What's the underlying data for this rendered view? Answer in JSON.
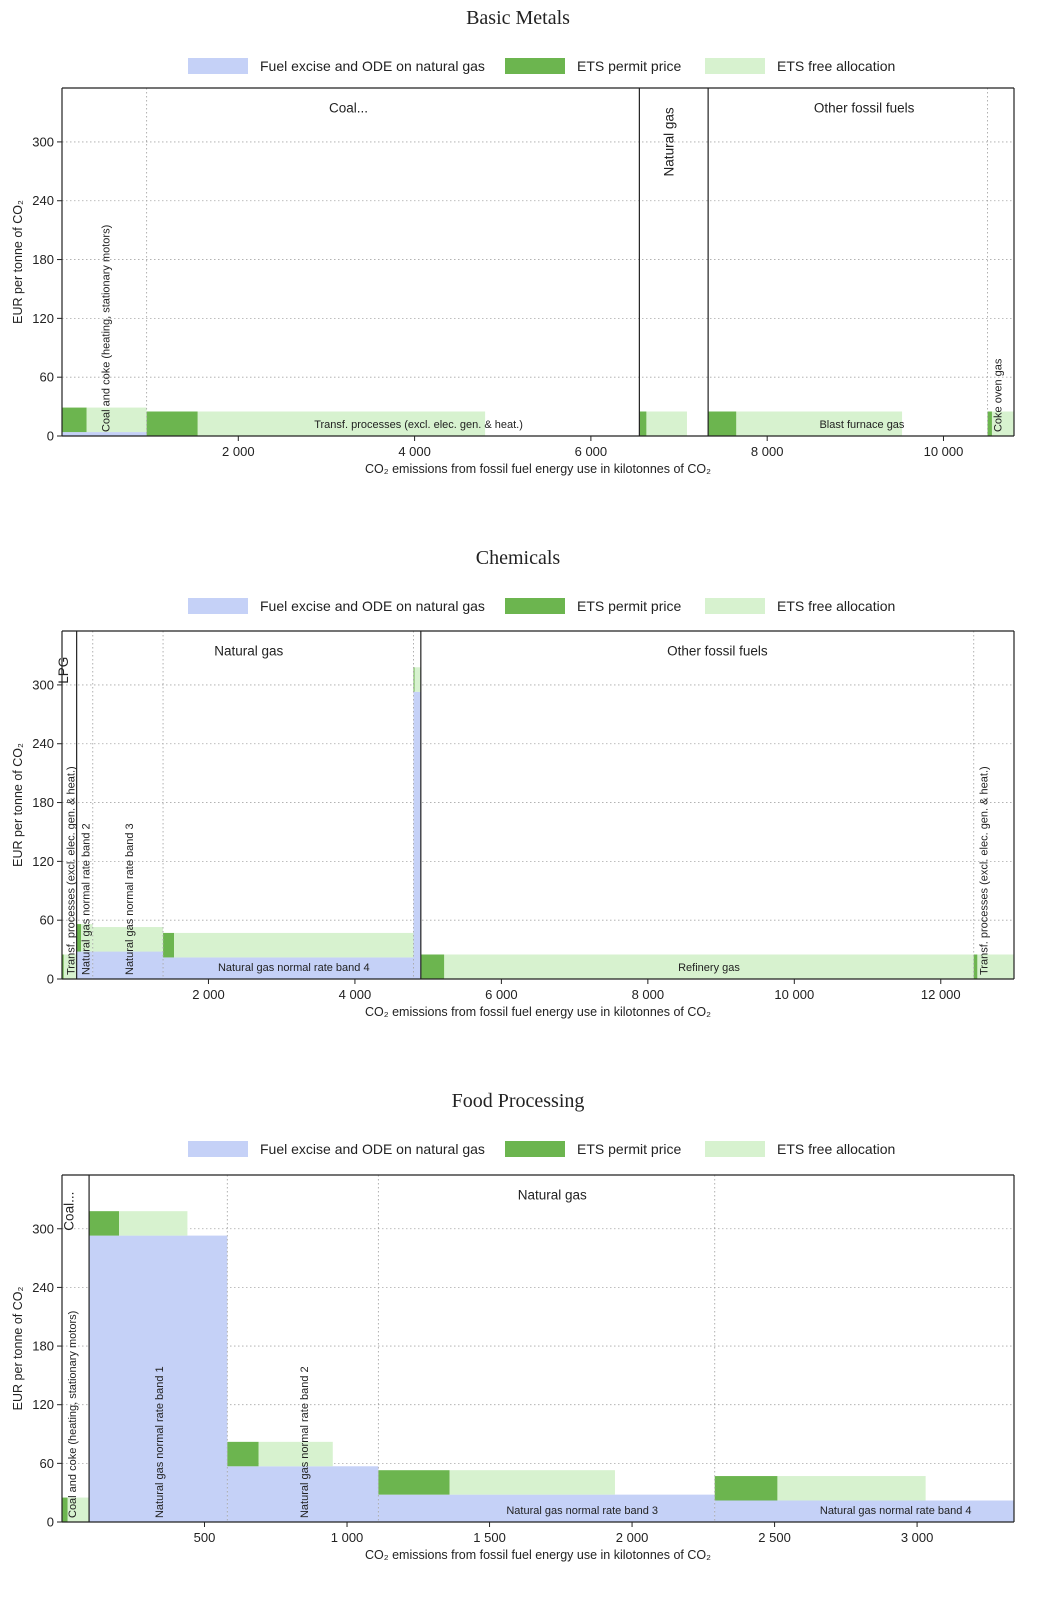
{
  "colors": {
    "excise": "#c5d1f7",
    "permit": "#6cb54f",
    "free": "#d7f2cf",
    "frame": "#222222",
    "grid": "#a8a8a8"
  },
  "legend": {
    "excise": "Fuel excise and ODE on natural gas",
    "permit": "ETS permit price",
    "free": "ETS free allocation"
  },
  "axis": {
    "ylabel": "EUR per tonne of CO₂",
    "xlabel": "CO₂ emissions from fossil fuel energy use in kilotonnes of CO₂"
  },
  "chart_data": [
    {
      "type": "bar",
      "title": "Basic Metals",
      "xlim": [
        0,
        10800
      ],
      "ylim": [
        0,
        355
      ],
      "xticks": [
        {
          "v": 2000,
          "label": "2 000"
        },
        {
          "v": 4000,
          "label": "4 000"
        },
        {
          "v": 6000,
          "label": "6 000"
        },
        {
          "v": 8000,
          "label": "8 000"
        },
        {
          "v": 10000,
          "label": "10 000"
        }
      ],
      "yticks": [
        {
          "v": 0,
          "label": "0"
        },
        {
          "v": 60,
          "label": "60"
        },
        {
          "v": 120,
          "label": "120"
        },
        {
          "v": 180,
          "label": "180"
        },
        {
          "v": 240,
          "label": "240"
        },
        {
          "v": 300,
          "label": "300"
        }
      ],
      "group_boundaries": [
        6550,
        7330
      ],
      "sub_boundaries": [
        960,
        10500
      ],
      "group_labels": [
        {
          "text": "Coal...",
          "x": 3250,
          "y": 330,
          "rotate": false
        },
        {
          "text": "Natural gas",
          "x": 6940,
          "y": 300,
          "rotate": true
        },
        {
          "text": "Other fossil fuels",
          "x": 9100,
          "y": 330,
          "rotate": false
        }
      ],
      "bars": [
        {
          "x0": 0,
          "x1": 960,
          "excise": 4,
          "permit_width": 280,
          "permit": 25,
          "free_width": 680,
          "free": 25,
          "label": "Coal and coke (heating, stationary motors)",
          "rotate": true
        },
        {
          "x0": 960,
          "x1": 6550,
          "excise": 0,
          "permit_width": 580,
          "permit": 25,
          "free_width": 3260,
          "free": 25,
          "label": "Transf. processes (excl. elec. gen. & heat.)",
          "rotate": false
        },
        {
          "x0": 6550,
          "x1": 7330,
          "excise": 0,
          "permit_width": 80,
          "permit": 25,
          "free_width": 460,
          "free": 25,
          "label": "",
          "rotate": false
        },
        {
          "x0": 7330,
          "x1": 10500,
          "excise": 0,
          "permit_width": 320,
          "permit": 25,
          "free_width": 1880,
          "free": 25,
          "label": "Blast furnace gas",
          "rotate": false
        },
        {
          "x0": 10500,
          "x1": 10800,
          "excise": 0,
          "permit_width": 50,
          "permit": 25,
          "free_width": 250,
          "free": 25,
          "label": "Coke oven gas",
          "rotate": true
        }
      ]
    },
    {
      "type": "bar",
      "title": "Chemicals",
      "xlim": [
        0,
        13000
      ],
      "ylim": [
        0,
        355
      ],
      "xticks": [
        {
          "v": 2000,
          "label": "2 000"
        },
        {
          "v": 4000,
          "label": "4 000"
        },
        {
          "v": 6000,
          "label": "6 000"
        },
        {
          "v": 8000,
          "label": "8 000"
        },
        {
          "v": 10000,
          "label": "10 000"
        },
        {
          "v": 12000,
          "label": "12 000"
        }
      ],
      "yticks": [
        {
          "v": 0,
          "label": "0"
        },
        {
          "v": 60,
          "label": "60"
        },
        {
          "v": 120,
          "label": "120"
        },
        {
          "v": 180,
          "label": "180"
        },
        {
          "v": 240,
          "label": "240"
        },
        {
          "v": 300,
          "label": "300"
        }
      ],
      "group_boundaries": [
        200,
        4900
      ],
      "sub_boundaries": [
        420,
        1380,
        4800,
        12450
      ],
      "group_labels": [
        {
          "text": "LPG",
          "x": 80,
          "y": 315,
          "rotate": true
        },
        {
          "text": "Natural gas",
          "x": 2550,
          "y": 330,
          "rotate": false
        },
        {
          "text": "Other fossil fuels",
          "x": 8950,
          "y": 330,
          "rotate": false
        }
      ],
      "bars": [
        {
          "x0": 0,
          "x1": 200,
          "excise": 0,
          "permit_width": 25,
          "permit": 25,
          "free_width": 175,
          "free": 25,
          "label": "Transf. processes (excl. elec. gen. & heat.)",
          "rotate": true
        },
        {
          "x0": 200,
          "x1": 420,
          "excise": 28,
          "permit_width": 60,
          "permit": 28,
          "free_width": 160,
          "free": 28,
          "label": "Natural gas normal rate band 2",
          "rotate": true
        },
        {
          "x0": 420,
          "x1": 1380,
          "excise": 28,
          "permit_width": 0,
          "permit": 0,
          "free_width": 960,
          "free": 25,
          "label": "Natural gas normal rate band 3",
          "rotate": true
        },
        {
          "x0": 1380,
          "x1": 4800,
          "excise": 22,
          "permit_width": 150,
          "permit": 25,
          "free_width": 3270,
          "free": 25,
          "label": "Natural gas normal rate band 4",
          "rotate": false
        },
        {
          "x0": 4800,
          "x1": 4900,
          "excise": 293,
          "permit_width": 15,
          "permit": 25,
          "free_width": 85,
          "free": 25,
          "label": "",
          "rotate": false
        },
        {
          "x0": 4900,
          "x1": 12450,
          "excise": 0,
          "permit_width": 320,
          "permit": 25,
          "free_width": 7230,
          "free": 25,
          "label": "Refinery gas",
          "rotate": false
        },
        {
          "x0": 12450,
          "x1": 13000,
          "excise": 0,
          "permit_width": 50,
          "permit": 25,
          "free_width": 500,
          "free": 25,
          "label": "Transf. processes (excl. elec. gen. & heat.)",
          "rotate": true
        }
      ]
    },
    {
      "type": "bar",
      "title": "Food Processing",
      "xlim": [
        0,
        3340
      ],
      "ylim": [
        0,
        355
      ],
      "xticks": [
        {
          "v": 500,
          "label": "500"
        },
        {
          "v": 1000,
          "label": "1 000"
        },
        {
          "v": 1500,
          "label": "1 500"
        },
        {
          "v": 2000,
          "label": "2 000"
        },
        {
          "v": 2500,
          "label": "2 500"
        },
        {
          "v": 3000,
          "label": "3 000"
        }
      ],
      "yticks": [
        {
          "v": 0,
          "label": "0"
        },
        {
          "v": 60,
          "label": "60"
        },
        {
          "v": 120,
          "label": "120"
        },
        {
          "v": 180,
          "label": "180"
        },
        {
          "v": 240,
          "label": "240"
        },
        {
          "v": 300,
          "label": "300"
        }
      ],
      "group_boundaries": [
        95
      ],
      "sub_boundaries": [
        580,
        1110,
        2290
      ],
      "group_labels": [
        {
          "text": "Coal...",
          "x": 40,
          "y": 318,
          "rotate": true
        },
        {
          "text": "Natural gas",
          "x": 1720,
          "y": 330,
          "rotate": false
        }
      ],
      "bars": [
        {
          "x0": 0,
          "x1": 95,
          "excise": 0,
          "permit_width": 20,
          "permit": 25,
          "free_width": 75,
          "free": 25,
          "label": "Coal and coke (heating, stationary motors)",
          "rotate": true
        },
        {
          "x0": 95,
          "x1": 580,
          "excise": 293,
          "permit_width": 105,
          "permit": 25,
          "free_width": 240,
          "free": 25,
          "label": "Natural gas normal rate band 1",
          "rotate": true
        },
        {
          "x0": 580,
          "x1": 1110,
          "excise": 57,
          "permit_width": 110,
          "permit": 25,
          "free_width": 260,
          "free": 25,
          "label": "Natural gas normal rate band 2",
          "rotate": true
        },
        {
          "x0": 1110,
          "x1": 2290,
          "excise": 28,
          "permit_width": 250,
          "permit": 25,
          "free_width": 580,
          "free": 25,
          "label": "Natural gas normal rate band 3",
          "rotate": false
        },
        {
          "x0": 2290,
          "x1": 3340,
          "excise": 22,
          "permit_width": 220,
          "permit": 25,
          "free_width": 520,
          "free": 25,
          "label": "Natural gas normal rate band 4",
          "rotate": false
        }
      ]
    }
  ]
}
